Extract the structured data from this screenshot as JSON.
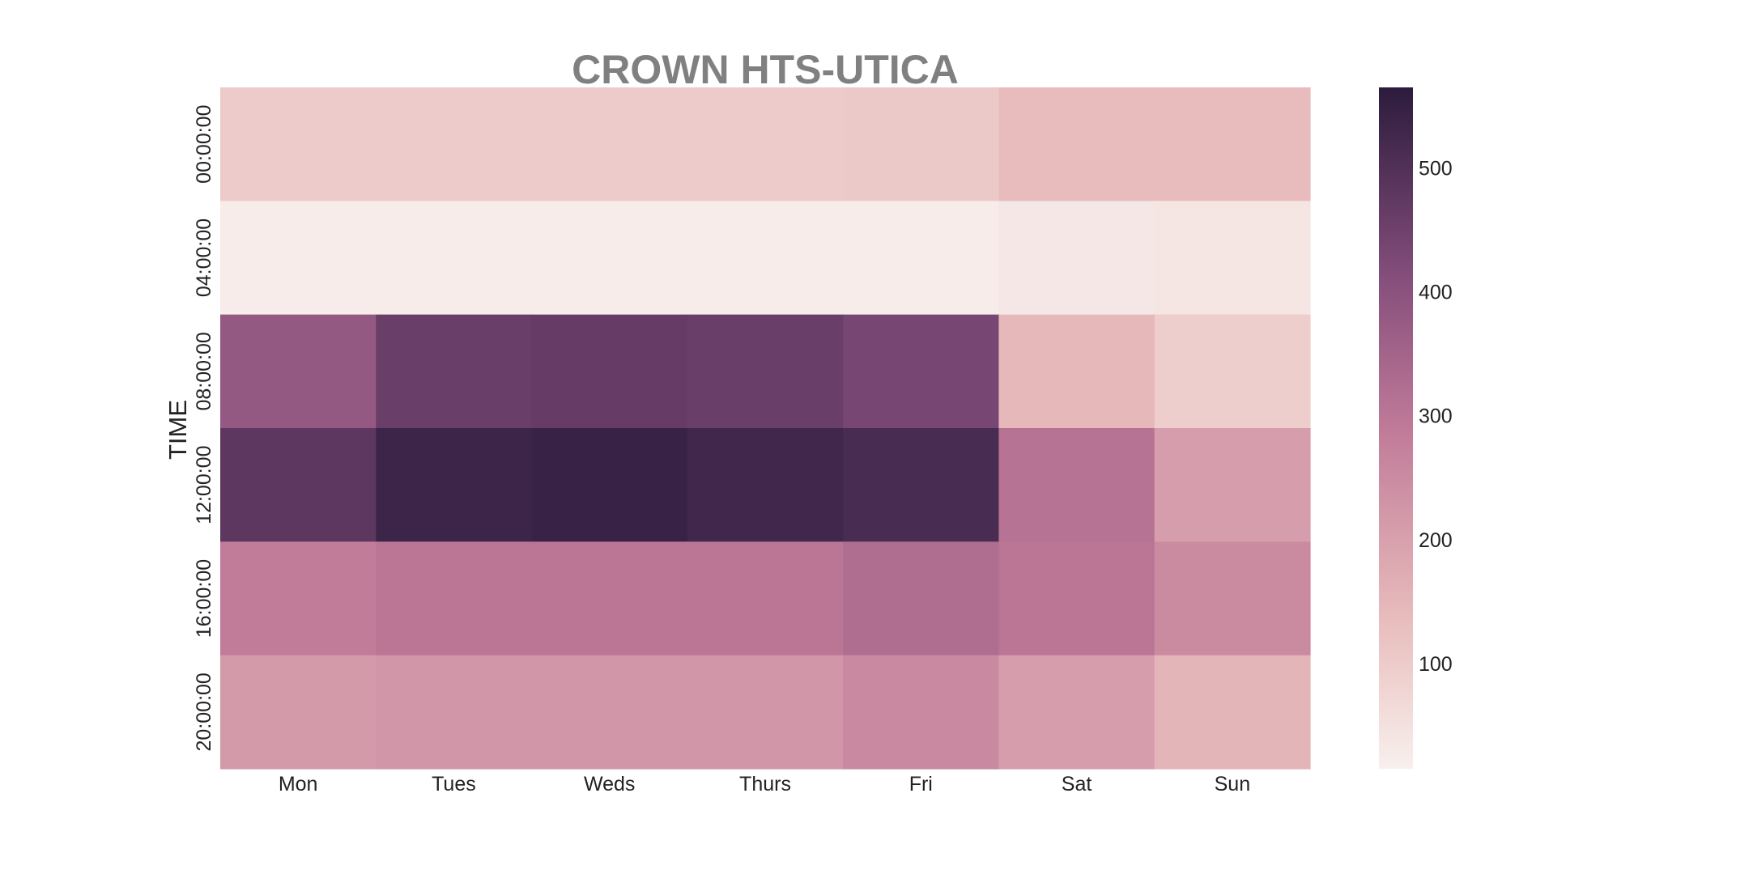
{
  "chart_data": {
    "type": "heatmap",
    "title": "CROWN HTS-UTICA",
    "xlabel": "",
    "ylabel": "TIME",
    "x_categories": [
      "Mon",
      "Tues",
      "Weds",
      "Thurs",
      "Fri",
      "Sat",
      "Sun"
    ],
    "y_categories": [
      "00:00:00",
      "04:00:00",
      "08:00:00",
      "12:00:00",
      "16:00:00",
      "20:00:00"
    ],
    "values": [
      [
        100,
        100,
        100,
        100,
        105,
        135,
        135
      ],
      [
        25,
        25,
        25,
        25,
        25,
        35,
        40
      ],
      [
        380,
        460,
        465,
        460,
        435,
        145,
        95
      ],
      [
        480,
        535,
        545,
        530,
        515,
        310,
        205
      ],
      [
        285,
        300,
        300,
        300,
        325,
        300,
        250
      ],
      [
        215,
        225,
        225,
        225,
        255,
        205,
        155
      ]
    ],
    "colorbar": {
      "min": 15,
      "max": 565,
      "ticks": [
        100,
        200,
        300,
        400,
        500
      ]
    },
    "colors": {
      "low": "#f8f0ed",
      "mid_low": "#e8bcbc",
      "mid": "#c07a98",
      "mid_high": "#854e7c",
      "high": "#2c1b3d"
    },
    "grid": false
  }
}
